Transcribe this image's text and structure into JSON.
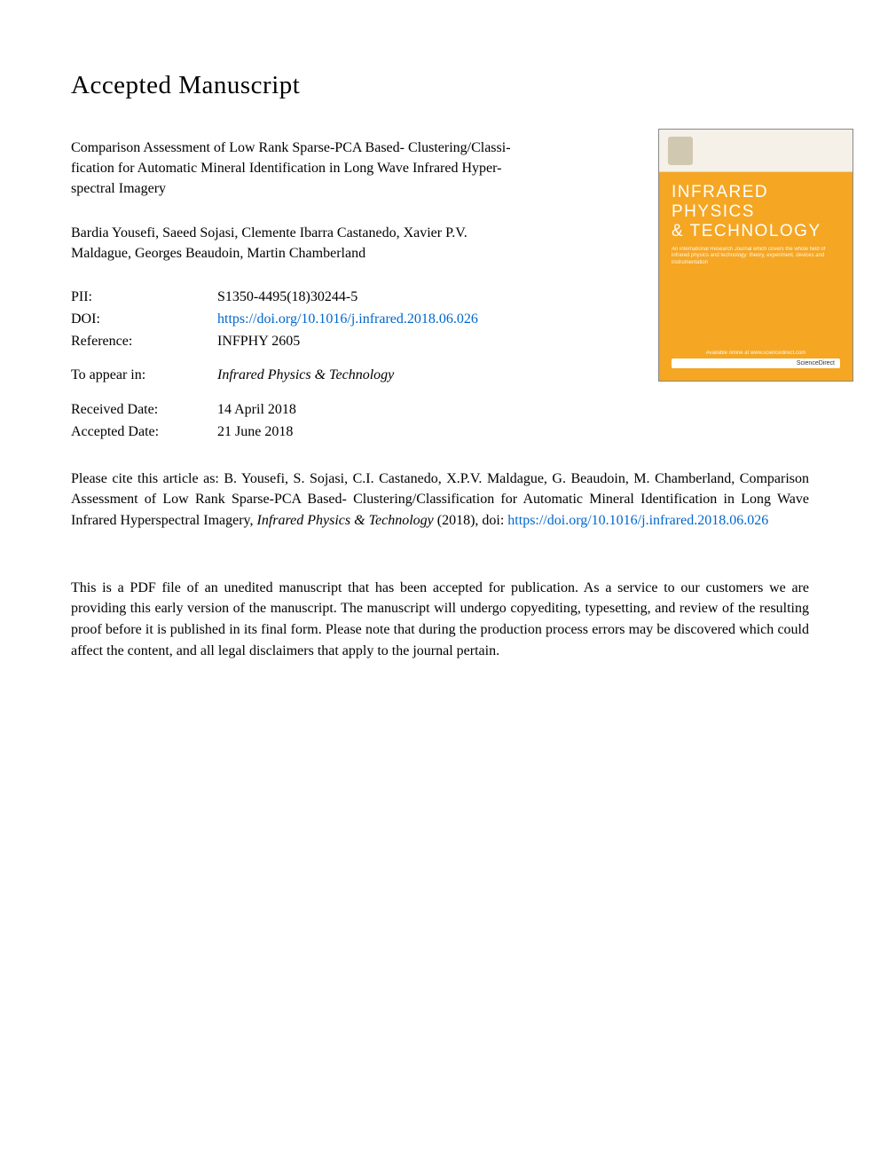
{
  "page": {
    "heading": "Accepted Manuscript",
    "background_color": "#ffffff",
    "text_color": "#000000",
    "link_color": "#0066cc"
  },
  "title": {
    "line1": "Comparison Assessment of Low Rank Sparse-PCA Based- Clustering/Classi-",
    "line2": "fication for Automatic Mineral Identification in Long Wave Infrared Hyper-",
    "line3": "spectral Imagery"
  },
  "authors": {
    "line1": "Bardia Yousefi, Saeed Sojasi, Clemente Ibarra Castanedo, Xavier P.V.",
    "line2": "Maldague, Georges Beaudoin, Martin Chamberland"
  },
  "metadata": {
    "pii": {
      "label": "PII:",
      "value": "S1350-4495(18)30244-5"
    },
    "doi": {
      "label": "DOI:",
      "value": "https://doi.org/10.1016/j.infrared.2018.06.026"
    },
    "reference": {
      "label": "Reference:",
      "value": "INFPHY 2605"
    },
    "appear_in": {
      "label": "To appear in:",
      "value": "Infrared Physics & Technology"
    },
    "received": {
      "label": "Received Date:",
      "value": "14 April 2018"
    },
    "accepted": {
      "label": "Accepted Date:",
      "value": "21 June 2018"
    }
  },
  "cover": {
    "publisher": "ELSEVIER",
    "journal_line1": "INFRARED PHYSICS",
    "journal_line2": "& TECHNOLOGY",
    "tagline": "An international Research Journal which covers the whole field of infrared physics and technology: theory, experiment, devices and instrumentation",
    "available": "Available online at www.sciencedirect.com",
    "sciencedirect": "ScienceDirect",
    "background_color": "#f5a623",
    "top_color": "#f5f0e8"
  },
  "citation": {
    "text_before_italic": "Please cite this article as: B. Yousefi, S. Sojasi, C.I. Castanedo, X.P.V. Maldague, G. Beaudoin, M. Chamberland, Comparison Assessment of Low Rank Sparse-PCA Based- Clustering/Classification for Automatic Mineral Identification in Long Wave Infrared Hyperspectral Imagery, ",
    "italic_part": "Infrared Physics & Technology",
    "text_after_italic": " (2018), doi: ",
    "link_text": "https://doi.org/10.1016/j.infrared.2018.06.026"
  },
  "disclaimer": {
    "text": "This is a PDF file of an unedited manuscript that has been accepted for publication. As a service to our customers we are providing this early version of the manuscript. The manuscript will undergo copyediting, typesetting, and review of the resulting proof before it is published in its final form. Please note that during the production process errors may be discovered which could affect the content, and all legal disclaimers that apply to the journal pertain."
  }
}
